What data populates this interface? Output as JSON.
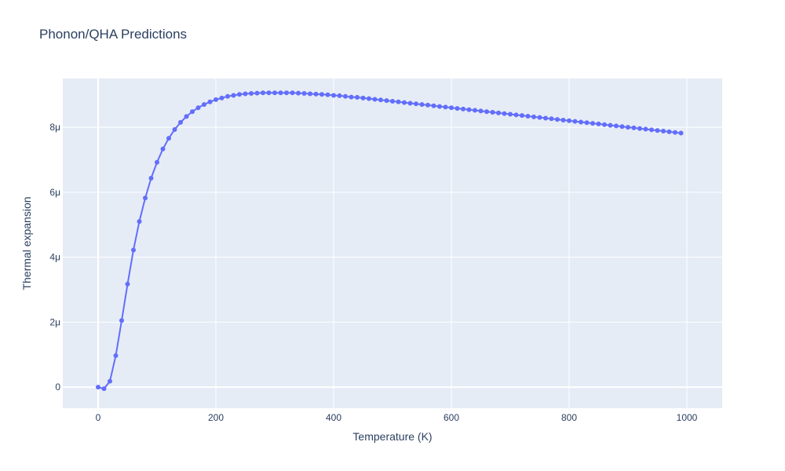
{
  "chart_data": {
    "type": "line",
    "title": "Phonon/QHA Predictions",
    "xlabel": "Temperature (K)",
    "ylabel": "Thermal expansion",
    "xlim": [
      -60,
      1060
    ],
    "ylim": [
      -6.5e-07,
      9.5e-06
    ],
    "xticks": [
      0,
      200,
      400,
      600,
      800,
      1000
    ],
    "xtick_labels": [
      "0",
      "200",
      "400",
      "600",
      "800",
      "1000"
    ],
    "yticks": [
      0,
      2e-06,
      4e-06,
      6e-06,
      8e-06
    ],
    "ytick_labels": [
      "0",
      "2μ",
      "4μ",
      "6μ",
      "8μ"
    ],
    "grid": true,
    "colors": {
      "series": "#636efa",
      "plot_bg": "#e5ecf6",
      "grid": "#ffffff",
      "text": "#2a3f5f"
    },
    "series": [
      {
        "marker": "circle",
        "x": [
          0,
          10,
          20,
          30,
          40,
          50,
          60,
          70,
          80,
          90,
          100,
          110,
          120,
          130,
          140,
          150,
          160,
          170,
          180,
          190,
          200,
          210,
          220,
          230,
          240,
          250,
          260,
          270,
          280,
          290,
          300,
          310,
          320,
          330,
          340,
          350,
          360,
          370,
          380,
          390,
          400,
          410,
          420,
          430,
          440,
          450,
          460,
          470,
          480,
          490,
          500,
          510,
          520,
          530,
          540,
          550,
          560,
          570,
          580,
          590,
          600,
          610,
          620,
          630,
          640,
          650,
          660,
          670,
          680,
          690,
          700,
          710,
          720,
          730,
          740,
          750,
          760,
          770,
          780,
          790,
          800,
          810,
          820,
          830,
          840,
          850,
          860,
          870,
          880,
          890,
          900,
          910,
          920,
          930,
          940,
          950,
          960,
          970,
          980,
          990
        ],
        "y": [
          0,
          -5e-08,
          1.8e-07,
          9.7e-07,
          2.05e-06,
          3.17e-06,
          4.22e-06,
          5.1e-06,
          5.82e-06,
          6.43e-06,
          6.92e-06,
          7.33e-06,
          7.66e-06,
          7.93e-06,
          8.15e-06,
          8.33e-06,
          8.48e-06,
          8.6e-06,
          8.7e-06,
          8.78e-06,
          8.85e-06,
          8.9e-06,
          8.95e-06,
          8.98e-06,
          9.01e-06,
          9.03e-06,
          9.04e-06,
          9.05e-06,
          9.06e-06,
          9.06e-06,
          9.06e-06,
          9.06e-06,
          9.06e-06,
          9.06e-06,
          9.05e-06,
          9.04e-06,
          9.03e-06,
          9.02e-06,
          9.01e-06,
          9e-06,
          8.98e-06,
          8.97e-06,
          8.95e-06,
          8.93e-06,
          8.92e-06,
          8.9e-06,
          8.88e-06,
          8.86e-06,
          8.84e-06,
          8.82e-06,
          8.8e-06,
          8.78e-06,
          8.76e-06,
          8.74e-06,
          8.72e-06,
          8.7e-06,
          8.68e-06,
          8.66e-06,
          8.64e-06,
          8.62e-06,
          8.6e-06,
          8.58e-06,
          8.56e-06,
          8.54e-06,
          8.52e-06,
          8.5e-06,
          8.48e-06,
          8.46e-06,
          8.44e-06,
          8.42e-06,
          8.4e-06,
          8.38e-06,
          8.36e-06,
          8.34e-06,
          8.32e-06,
          8.3e-06,
          8.28e-06,
          8.26e-06,
          8.24e-06,
          8.22e-06,
          8.2e-06,
          8.18e-06,
          8.16e-06,
          8.14e-06,
          8.12e-06,
          8.1e-06,
          8.08e-06,
          8.06e-06,
          8.04e-06,
          8.02e-06,
          8e-06,
          7.98e-06,
          7.96e-06,
          7.94e-06,
          7.92e-06,
          7.9e-06,
          7.88e-06,
          7.86e-06,
          7.84e-06,
          7.82e-06
        ]
      }
    ]
  }
}
